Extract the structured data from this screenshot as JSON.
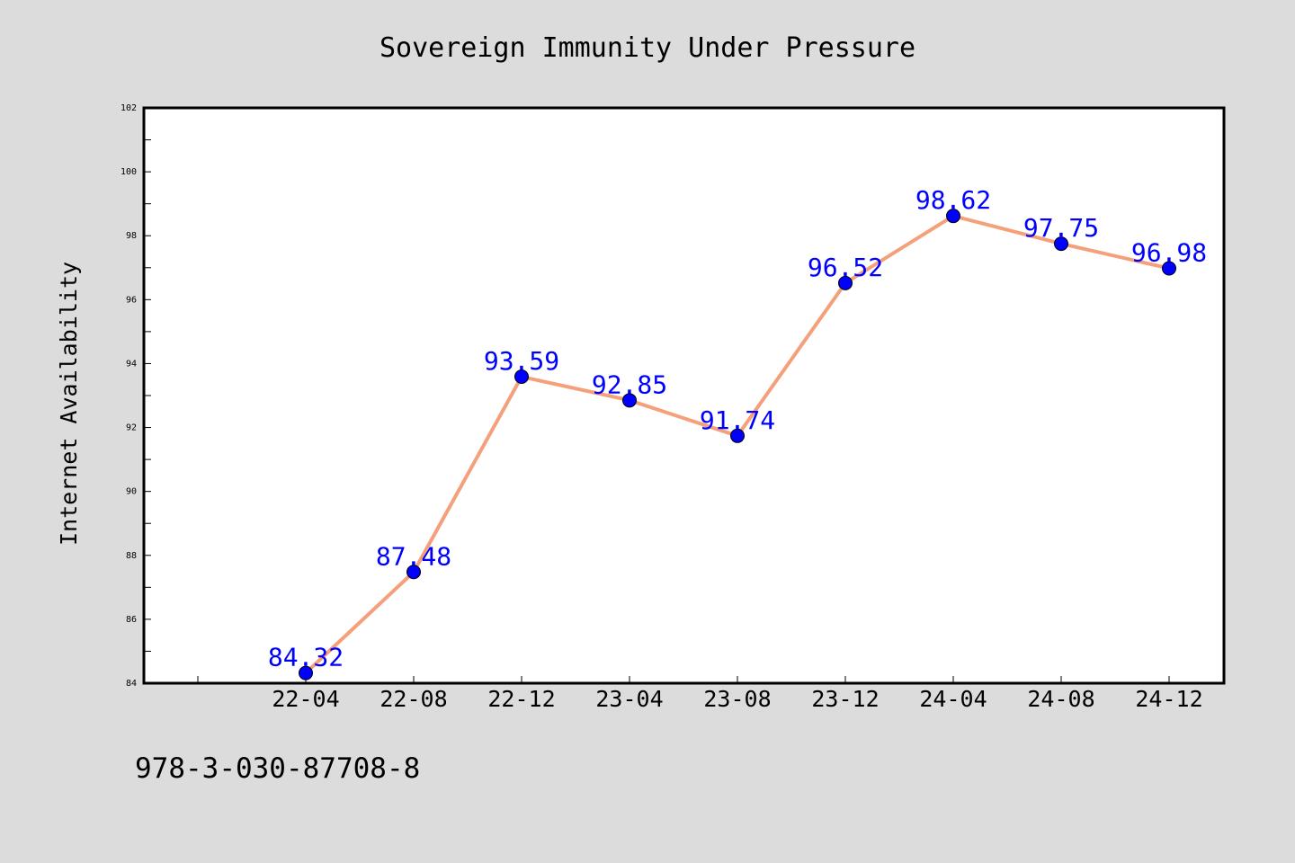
{
  "chart_data": {
    "type": "line",
    "title": "Sovereign Immunity Under Pressure",
    "xlabel": "",
    "ylabel": "Internet Availability",
    "categories": [
      "22-04",
      "22-08",
      "22-12",
      "23-04",
      "23-08",
      "23-12",
      "24-04",
      "24-08",
      "24-12"
    ],
    "values": [
      84.32,
      87.48,
      93.59,
      92.85,
      91.74,
      96.52,
      98.62,
      97.75,
      96.98
    ],
    "data_labels": [
      "84.32",
      "87.48",
      "93.59",
      "92.85",
      "91.74",
      "96.52",
      "98.62",
      "97.75",
      "96.98"
    ],
    "ylim": [
      84,
      102
    ],
    "yticks": [
      84,
      86,
      88,
      90,
      92,
      94,
      96,
      98,
      100,
      102
    ],
    "grid": false,
    "legend": "none",
    "colors": {
      "line": "#f4a07a",
      "marker": "#0000ff",
      "data_label": "#0000ff",
      "plot_background": "#ffffff",
      "figure_background": "#dcdcdc"
    }
  },
  "annotation": "978-3-030-87708-8"
}
